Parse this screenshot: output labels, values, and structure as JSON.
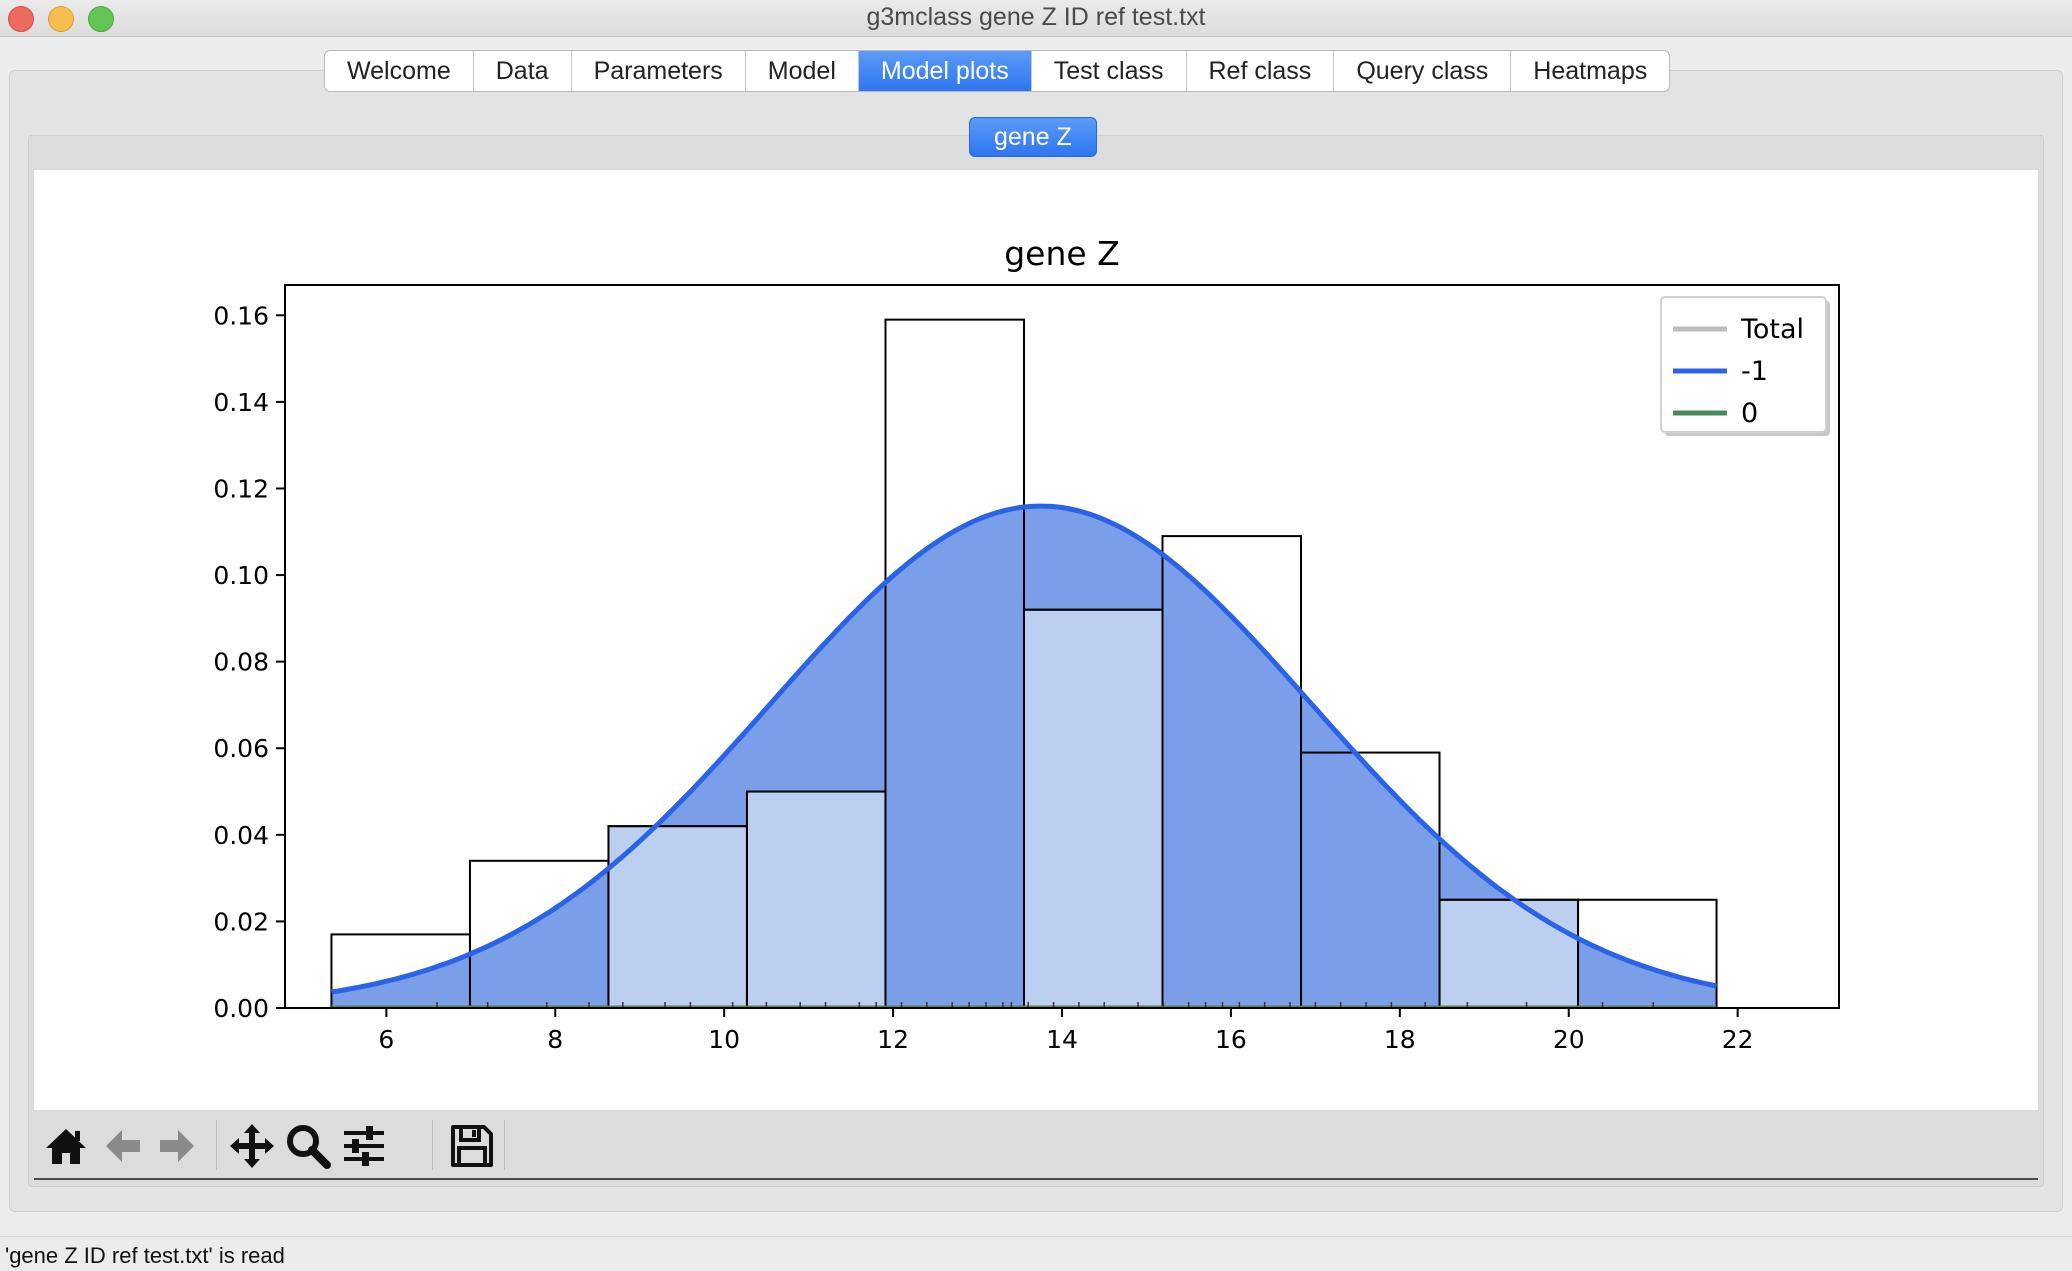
{
  "window": {
    "title": "g3mclass gene Z ID ref test.txt"
  },
  "tabs": [
    {
      "label": "Welcome",
      "active": false
    },
    {
      "label": "Data",
      "active": false
    },
    {
      "label": "Parameters",
      "active": false
    },
    {
      "label": "Model",
      "active": false
    },
    {
      "label": "Model plots",
      "active": true
    },
    {
      "label": "Test class",
      "active": false
    },
    {
      "label": "Ref class",
      "active": false
    },
    {
      "label": "Query class",
      "active": false
    },
    {
      "label": "Heatmaps",
      "active": false
    }
  ],
  "subtab": {
    "label": "gene Z"
  },
  "chart_data": {
    "type": "histogram",
    "title": "gene Z",
    "xlim": [
      4.8,
      23.2
    ],
    "ylim": [
      0,
      0.167
    ],
    "xticks": [
      6,
      8,
      10,
      12,
      14,
      16,
      18,
      20,
      22
    ],
    "yticks": [
      0.0,
      0.02,
      0.04,
      0.06,
      0.08,
      0.1,
      0.12,
      0.14,
      0.16
    ],
    "bin_edges": [
      5.35,
      6.99,
      8.63,
      10.27,
      11.91,
      13.55,
      15.19,
      16.83,
      18.47,
      20.11,
      21.75
    ],
    "total_hist": [
      0.017,
      0.034,
      0.042,
      0.05,
      0.159,
      0.092,
      0.109,
      0.059,
      0.025,
      0.025
    ],
    "class_hist": [
      {
        "name": "-1",
        "values": [
          0.0,
          0.0,
          0.042,
          0.05,
          0.0,
          0.092,
          0.0,
          0.0,
          0.025,
          0.0
        ]
      }
    ],
    "curve": {
      "name": "-1",
      "mean": 13.75,
      "sd": 3.2,
      "weight": 0.93
    },
    "legend": {
      "position": "top-right",
      "entries": [
        {
          "label": "Total",
          "color": "#bdbdbd"
        },
        {
          "label": "-1",
          "color": "#2a63e8"
        },
        {
          "label": "0",
          "color": "#4a8a5a"
        }
      ]
    },
    "grid": false
  },
  "toolbar": {
    "items": [
      "home-icon",
      "back-icon",
      "forward-icon",
      "pan-icon",
      "zoom-icon",
      "configure-icon",
      "save-icon"
    ]
  },
  "status": {
    "text": "'gene Z ID ref test.txt' is read"
  }
}
